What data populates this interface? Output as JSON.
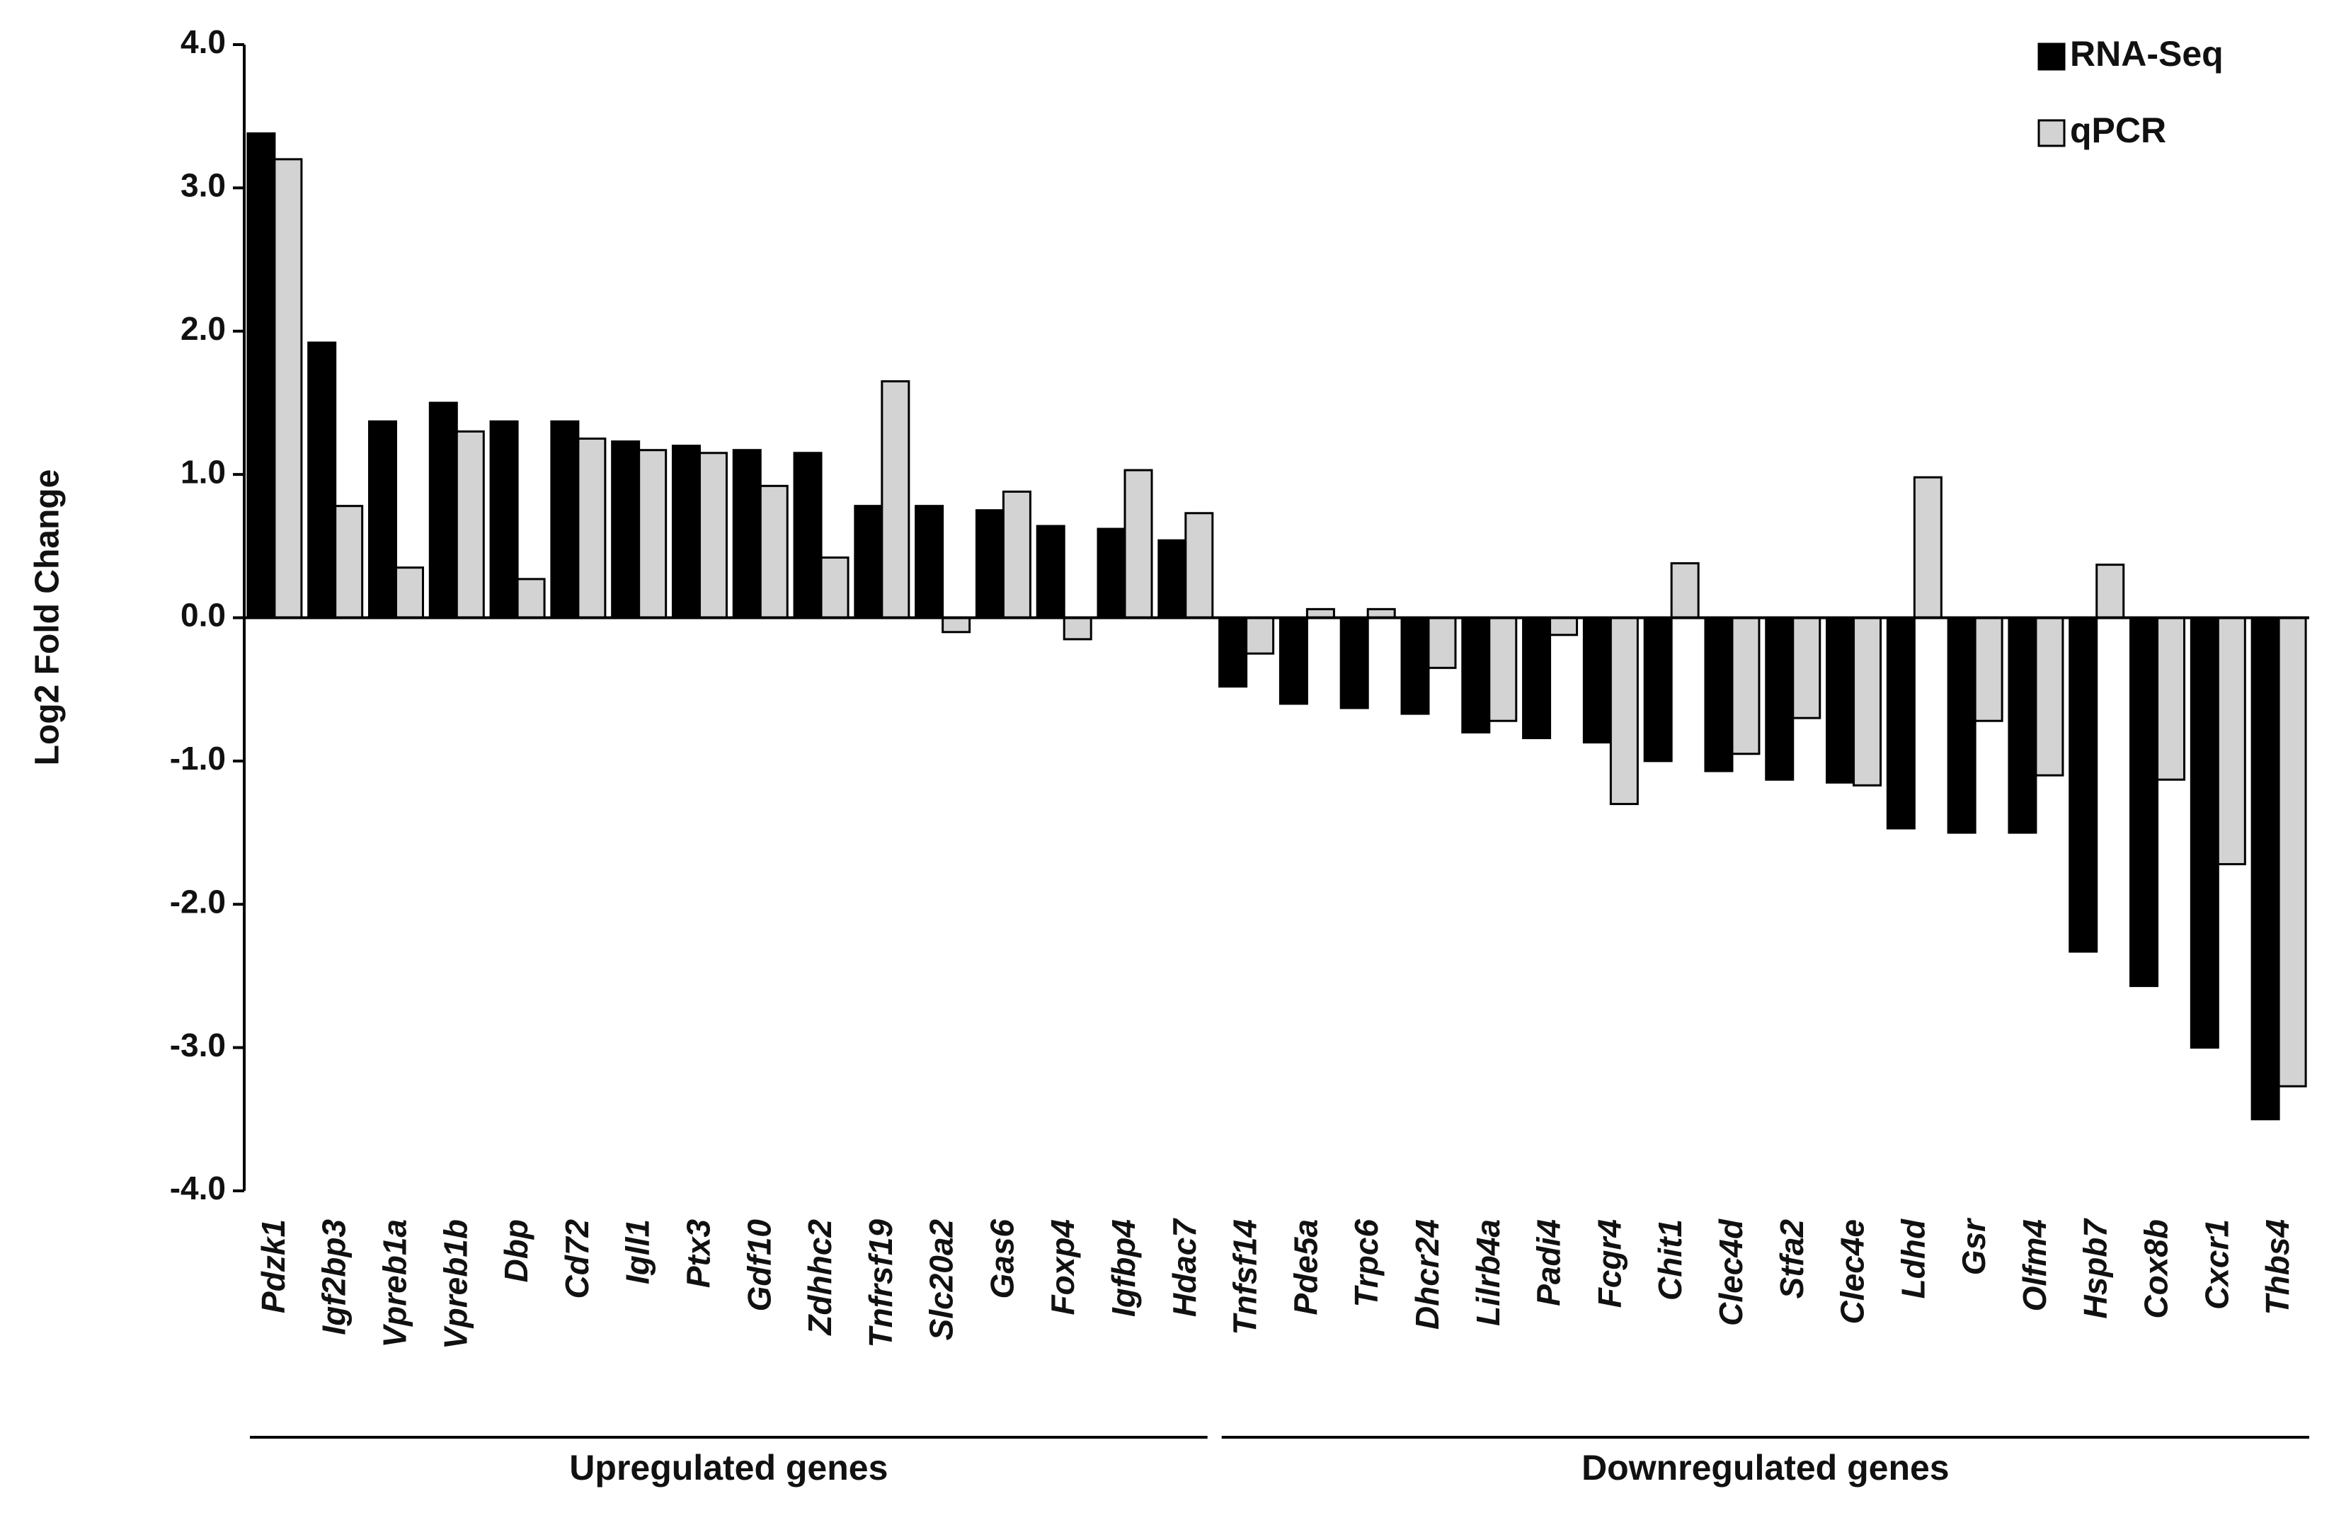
{
  "chart_data": {
    "type": "bar",
    "y_label": "Log2 Fold Change",
    "categories": [
      "Pdzk1",
      "Igf2bp3",
      "Vpreb1a",
      "Vpreb1b",
      "Dbp",
      "Cd72",
      "Igll1",
      "Ptx3",
      "Gdf10",
      "Zdhhc2",
      "Tnfrsf19",
      "Slc20a2",
      "Gas6",
      "Foxp4",
      "Igfbp4",
      "Hdac7",
      "Tnfsf14",
      "Pde5a",
      "Trpc6",
      "Dhcr24",
      "Lilrb4a",
      "Padi4",
      "Fcgr4",
      "Chit1",
      "Clec4d",
      "Stfa2",
      "Clec4e",
      "Ldhd",
      "Gsr",
      "Olfm4",
      "Hspb7",
      "Cox8b",
      "Cxcr1",
      "Thbs4"
    ],
    "series": [
      {
        "name": "RNA-Seq",
        "color": "#000000",
        "values": [
          3.38,
          1.92,
          1.37,
          1.5,
          1.37,
          1.37,
          1.23,
          1.2,
          1.17,
          1.15,
          0.78,
          0.78,
          0.75,
          0.64,
          0.62,
          0.54,
          -0.48,
          -0.6,
          -0.63,
          -0.67,
          -0.8,
          -0.84,
          -0.87,
          -1.0,
          -1.07,
          -1.13,
          -1.15,
          -1.47,
          -1.5,
          -1.5,
          -2.33,
          -2.57,
          -3.0,
          -3.5
        ]
      },
      {
        "name": "qPCR",
        "color": "#d3d3d3",
        "values": [
          3.2,
          0.78,
          0.35,
          1.3,
          0.27,
          1.25,
          1.17,
          1.15,
          0.92,
          0.42,
          1.65,
          -0.1,
          0.88,
          -0.15,
          1.03,
          0.73,
          -0.25,
          0.06,
          0.06,
          -0.35,
          -0.72,
          -0.12,
          -1.3,
          0.38,
          -0.95,
          -0.7,
          -1.17,
          0.98,
          -0.72,
          -1.1,
          0.37,
          -1.13,
          -1.72,
          -3.27
        ]
      }
    ],
    "group_labels": [
      "Upregulated genes",
      "Downregulated genes"
    ],
    "ylim": [
      -4,
      4
    ],
    "yticks": [
      {
        "value": -4,
        "label": "-4.0"
      },
      {
        "value": -3,
        "label": "-3.0"
      },
      {
        "value": -2,
        "label": "-2.0"
      },
      {
        "value": -1,
        "label": "-1.0"
      },
      {
        "value": 0,
        "label": "0.0"
      },
      {
        "value": 1,
        "label": "1.0"
      },
      {
        "value": 2,
        "label": "2.0"
      },
      {
        "value": 3,
        "label": "3.0"
      },
      {
        "value": 4,
        "label": "4.0"
      }
    ],
    "legend": "top-right"
  }
}
